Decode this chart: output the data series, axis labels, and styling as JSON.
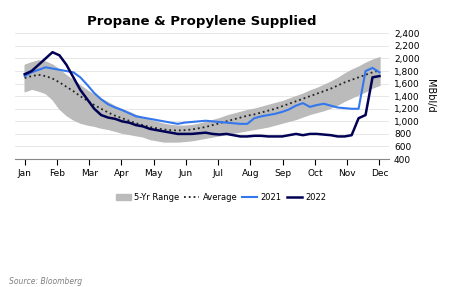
{
  "title": "Propane & Propylene Supplied",
  "ylabel": "MBbl/d",
  "source": "Source: Bloomberg",
  "ylim": [
    400,
    2400
  ],
  "yticks": [
    400,
    600,
    800,
    1000,
    1200,
    1400,
    1600,
    1800,
    2000,
    2200,
    2400
  ],
  "months": [
    "Jan",
    "Feb",
    "Mar",
    "Apr",
    "May",
    "Jun",
    "Jul",
    "Aug",
    "Sep",
    "Oct",
    "Nov",
    "Dec"
  ],
  "range_low": [
    1480,
    1520,
    1490,
    1450,
    1350,
    1200,
    1100,
    1030,
    980,
    950,
    930,
    900,
    880,
    850,
    820,
    800,
    780,
    760,
    720,
    700,
    680,
    680,
    680,
    690,
    700,
    720,
    740,
    760,
    780,
    800,
    820,
    840,
    860,
    880,
    900,
    920,
    950,
    980,
    1010,
    1040,
    1080,
    1120,
    1150,
    1180,
    1220,
    1270,
    1330,
    1380,
    1430,
    1480,
    1540,
    1580
  ],
  "range_high": [
    1900,
    1940,
    1970,
    1950,
    1900,
    1820,
    1730,
    1650,
    1570,
    1490,
    1420,
    1360,
    1300,
    1240,
    1190,
    1150,
    1100,
    1060,
    1020,
    990,
    960,
    940,
    930,
    930,
    940,
    960,
    990,
    1020,
    1050,
    1090,
    1120,
    1150,
    1180,
    1200,
    1230,
    1260,
    1290,
    1320,
    1360,
    1400,
    1440,
    1490,
    1530,
    1580,
    1630,
    1690,
    1760,
    1820,
    1870,
    1930,
    1980,
    2020
  ],
  "average": [
    1690,
    1720,
    1740,
    1720,
    1680,
    1620,
    1550,
    1480,
    1400,
    1330,
    1260,
    1200,
    1140,
    1090,
    1050,
    1010,
    970,
    940,
    910,
    890,
    870,
    860,
    855,
    860,
    870,
    890,
    910,
    940,
    970,
    1000,
    1030,
    1060,
    1090,
    1110,
    1140,
    1170,
    1200,
    1240,
    1280,
    1320,
    1360,
    1400,
    1440,
    1480,
    1520,
    1570,
    1620,
    1660,
    1700,
    1740,
    1780,
    1810
  ],
  "line2021": [
    1720,
    1780,
    1820,
    1860,
    1840,
    1820,
    1800,
    1780,
    1700,
    1580,
    1450,
    1350,
    1270,
    1220,
    1180,
    1130,
    1080,
    1060,
    1040,
    1020,
    1000,
    980,
    960,
    980,
    990,
    1000,
    1010,
    1000,
    990,
    980,
    970,
    960,
    960,
    1050,
    1080,
    1100,
    1120,
    1150,
    1190,
    1250,
    1290,
    1230,
    1260,
    1280,
    1250,
    1220,
    1210,
    1200,
    1200,
    1800,
    1850,
    1780
  ],
  "line2022": [
    1750,
    1800,
    1900,
    2000,
    2100,
    2050,
    1900,
    1700,
    1500,
    1350,
    1200,
    1100,
    1060,
    1040,
    1000,
    980,
    940,
    920,
    880,
    860,
    840,
    820,
    800,
    800,
    800,
    810,
    820,
    800,
    790,
    800,
    780,
    760,
    760,
    770,
    770,
    760,
    760,
    760,
    780,
    800,
    780,
    800,
    800,
    790,
    780,
    760,
    760,
    780,
    1050,
    1100,
    1700,
    1720
  ],
  "color_range": "#bbbbbb",
  "color_average": "#222222",
  "color_2021": "#3377ee",
  "color_2022": "#000055",
  "background_color": "#ffffff",
  "grid_color": "#dddddd",
  "n_points": 52
}
